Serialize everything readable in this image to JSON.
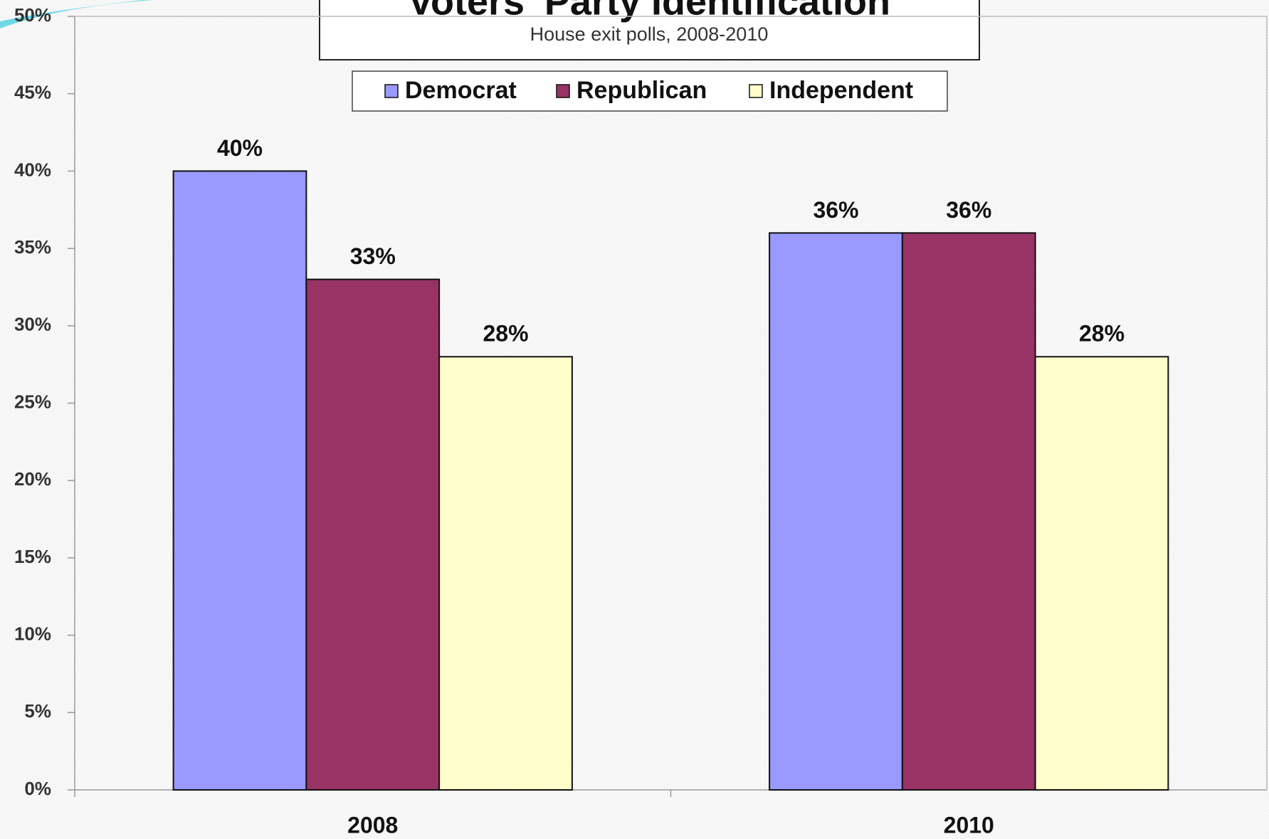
{
  "chart_data": {
    "type": "bar",
    "title": "Voters' Party Identification",
    "subtitle": "House exit polls, 2008-2010",
    "categories": [
      "2008",
      "2010"
    ],
    "series": [
      {
        "name": "Democrat",
        "color": "#9999ff",
        "values": [
          40,
          36
        ],
        "value_labels": [
          "40%",
          "36%"
        ]
      },
      {
        "name": "Republican",
        "color": "#993366",
        "values": [
          33,
          36
        ],
        "value_labels": [
          "33%",
          "36%"
        ]
      },
      {
        "name": "Independent",
        "color": "#ffffcc",
        "values": [
          28,
          28
        ],
        "value_labels": [
          "28%",
          "28%"
        ]
      }
    ],
    "ylim": [
      0,
      50
    ],
    "yticks": [
      {
        "value": 0,
        "label": "0%"
      },
      {
        "value": 5,
        "label": "5%"
      },
      {
        "value": 10,
        "label": "10%"
      },
      {
        "value": 15,
        "label": "15%"
      },
      {
        "value": 20,
        "label": "20%"
      },
      {
        "value": 25,
        "label": "25%"
      },
      {
        "value": 30,
        "label": "30%"
      },
      {
        "value": 35,
        "label": "35%"
      },
      {
        "value": 40,
        "label": "40%"
      },
      {
        "value": 45,
        "label": "45%"
      },
      {
        "value": 50,
        "label": "50%"
      }
    ],
    "legend": "top"
  }
}
